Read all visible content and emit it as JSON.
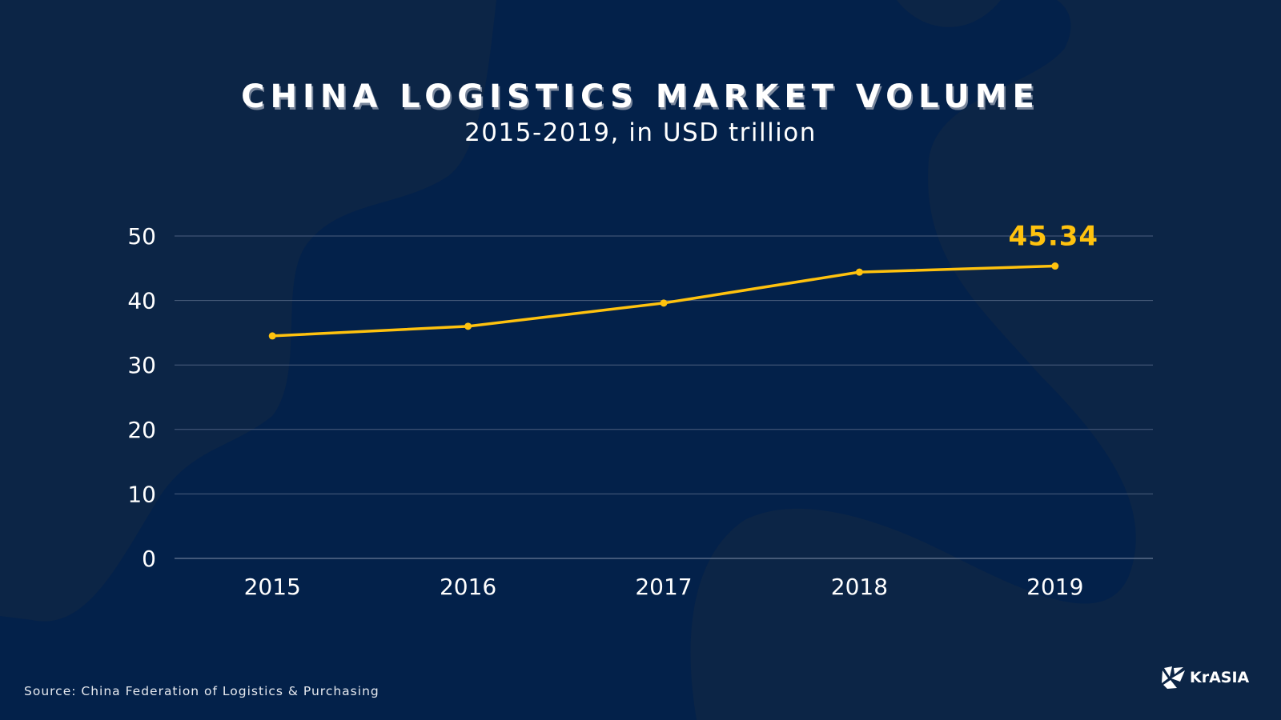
{
  "header": {
    "title": "CHINA LOGISTICS MARKET VOLUME",
    "subtitle": "2015-2019, in USD trillion"
  },
  "footer": {
    "source": "Source: China Federation of Logistics & Purchasing",
    "logo_text": "KrASIA"
  },
  "colors": {
    "background": "#0c2546",
    "background_shape": "#03214a",
    "line": "#ffc20e",
    "gridline": "#4c5f7e",
    "text": "#ffffff",
    "highlight_label": "#ffc20e"
  },
  "chart_data": {
    "type": "line",
    "title": "CHINA LOGISTICS MARKET VOLUME",
    "subtitle": "2015-2019, in USD trillion",
    "categories": [
      "2015",
      "2016",
      "2017",
      "2018",
      "2019"
    ],
    "series": [
      {
        "name": "Logistics market volume",
        "values": [
          34.5,
          36.0,
          39.6,
          44.4,
          45.34
        ]
      }
    ],
    "annotations": [
      {
        "category": "2019",
        "text": "45.34"
      }
    ],
    "xlabel": "",
    "ylabel": "",
    "ylim": [
      0,
      50
    ],
    "yticks": [
      0,
      10,
      20,
      30,
      40,
      50
    ],
    "grid": true,
    "legend": "none",
    "source": "Source: China Federation of Logistics & Purchasing"
  }
}
